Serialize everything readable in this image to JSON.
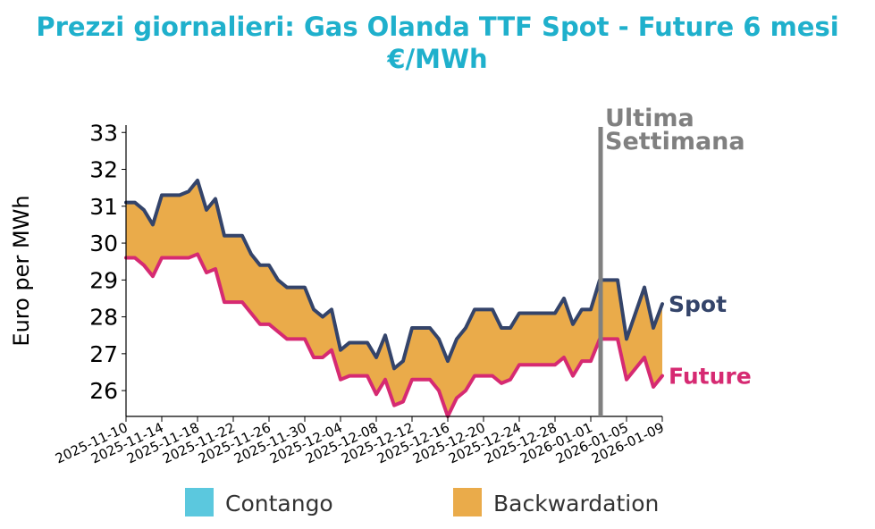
{
  "chart_data": {
    "type": "area",
    "title": "Prezzi giornalieri: Gas Olanda TTF Spot - Future 6 mesi",
    "subtitle": "€/MWh",
    "xlabel": "",
    "ylabel": "Euro per MWh",
    "ylim": [
      25.3,
      33.2
    ],
    "yticks": [
      26,
      27,
      28,
      29,
      30,
      31,
      32,
      33
    ],
    "x_start": "2025-11-10",
    "x_end": "2026-01-09",
    "xticks": [
      "2025-11-10",
      "2025-11-14",
      "2025-11-18",
      "2025-11-22",
      "2025-11-26",
      "2025-11-30",
      "2025-12-04",
      "2025-12-08",
      "2025-12-12",
      "2025-12-16",
      "2025-12-20",
      "2025-12-24",
      "2025-12-28",
      "2026-01-01",
      "2026-01-05",
      "2026-01-09"
    ],
    "series": [
      {
        "name": "Spot",
        "color": "#34446a",
        "values": [
          31.1,
          31.1,
          30.9,
          30.5,
          31.3,
          31.3,
          31.3,
          31.4,
          31.7,
          30.9,
          31.2,
          30.2,
          30.2,
          30.2,
          29.7,
          29.4,
          29.4,
          29.0,
          28.8,
          28.8,
          28.8,
          28.2,
          28.0,
          28.2,
          27.1,
          27.3,
          27.3,
          27.3,
          26.9,
          27.5,
          26.6,
          26.8,
          27.7,
          27.7,
          27.7,
          27.4,
          26.8,
          27.4,
          27.7,
          28.2,
          28.2,
          28.2,
          27.7,
          27.7,
          28.1,
          28.1,
          28.1,
          28.1,
          28.1,
          28.5,
          27.8,
          28.2,
          28.2,
          29.0,
          29.0,
          29.0,
          27.4,
          28.1,
          28.8,
          27.7,
          28.35
        ]
      },
      {
        "name": "Future",
        "color": "#d62a72",
        "values": [
          29.6,
          29.6,
          29.4,
          29.1,
          29.6,
          29.6,
          29.6,
          29.6,
          29.7,
          29.2,
          29.3,
          28.4,
          28.4,
          28.4,
          28.1,
          27.8,
          27.8,
          27.6,
          27.4,
          27.4,
          27.4,
          26.9,
          26.9,
          27.1,
          26.3,
          26.4,
          26.4,
          26.4,
          25.9,
          26.3,
          25.6,
          25.7,
          26.3,
          26.3,
          26.3,
          26.0,
          25.3,
          25.8,
          26.0,
          26.4,
          26.4,
          26.4,
          26.2,
          26.3,
          26.7,
          26.7,
          26.7,
          26.7,
          26.7,
          26.9,
          26.4,
          26.8,
          26.8,
          27.4,
          27.4,
          27.4,
          26.3,
          26.6,
          26.9,
          26.1,
          26.4
        ]
      }
    ],
    "annotation": {
      "text_line1": "Ultima",
      "text_line2": "Settimana",
      "date": "2026-01-02",
      "color": "#808080"
    },
    "legend": {
      "placement": "bottom",
      "items": [
        {
          "label": "Contango",
          "color": "#5bc8de"
        },
        {
          "label": "Backwardation",
          "color": "#eaab4a"
        }
      ]
    }
  }
}
